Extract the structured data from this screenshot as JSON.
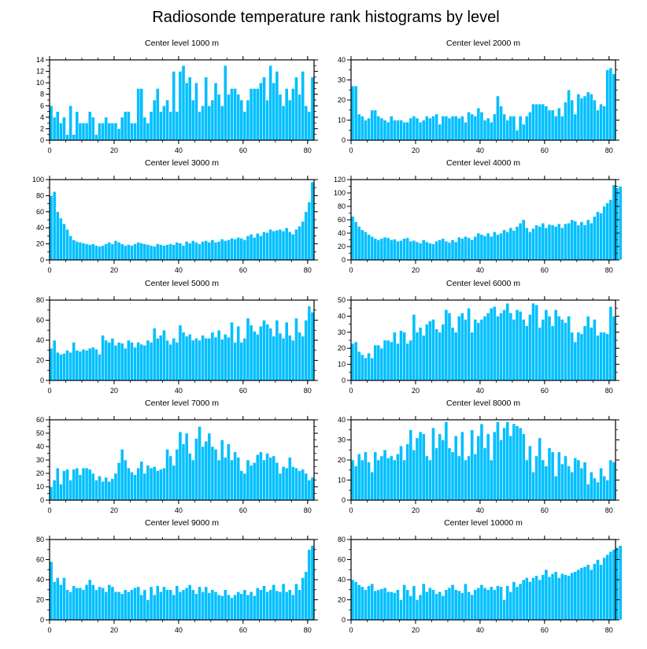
{
  "chart_data": {
    "type": "bar",
    "title": "Radiosonde temperature rank histograms by level",
    "bar_color": "#00bfff",
    "xlim": [
      0,
      82
    ],
    "xticks": [
      0,
      20,
      40,
      60,
      80
    ],
    "panels": [
      {
        "title": "Center level 1000 m",
        "ylim": [
          0,
          14
        ],
        "yticks": [
          0,
          2,
          4,
          6,
          8,
          10,
          12,
          14
        ],
        "values": [
          6,
          4,
          5,
          3,
          4,
          1,
          6,
          1,
          5,
          3,
          3,
          3,
          5,
          4,
          1,
          3,
          3,
          4,
          3,
          3,
          3,
          2,
          4,
          5,
          5,
          3,
          3,
          9,
          9,
          4,
          3,
          5,
          7,
          9,
          5,
          6,
          7,
          5,
          12,
          5,
          12,
          13,
          10,
          11,
          7,
          10,
          5,
          6,
          11,
          6,
          7,
          10,
          8,
          6,
          13,
          8,
          9,
          9,
          8,
          7,
          5,
          7,
          9,
          9,
          9,
          10,
          11,
          7,
          13,
          10,
          12,
          8,
          6,
          9,
          7,
          9,
          11,
          8,
          12,
          6,
          5,
          11
        ]
      },
      {
        "title": "Center level 2000 m",
        "ylim": [
          0,
          40
        ],
        "yticks": [
          0,
          10,
          20,
          30,
          40
        ],
        "values": [
          27,
          27,
          13,
          12,
          10,
          11,
          15,
          15,
          12,
          11,
          10,
          9,
          12,
          10,
          10,
          10,
          9,
          9,
          11,
          12,
          11,
          9,
          10,
          12,
          11,
          12,
          13,
          8,
          12,
          12,
          11,
          12,
          12,
          11,
          12,
          9,
          14,
          13,
          12,
          16,
          14,
          10,
          11,
          9,
          13,
          22,
          17,
          13,
          10,
          12,
          12,
          5,
          12,
          8,
          12,
          14,
          18,
          18,
          18,
          18,
          17,
          15,
          15,
          12,
          16,
          12,
          19,
          25,
          20,
          13,
          23,
          21,
          22,
          24,
          23,
          20,
          15,
          18,
          17,
          35,
          36,
          33
        ]
      },
      {
        "title": "Center level 3000 m",
        "ylim": [
          0,
          100
        ],
        "yticks": [
          0,
          20,
          40,
          60,
          80,
          100
        ],
        "values": [
          80,
          85,
          60,
          52,
          45,
          38,
          30,
          25,
          23,
          22,
          21,
          20,
          19,
          20,
          18,
          17,
          18,
          20,
          22,
          20,
          24,
          22,
          20,
          18,
          19,
          18,
          20,
          22,
          21,
          20,
          19,
          18,
          17,
          20,
          19,
          18,
          19,
          20,
          19,
          22,
          21,
          18,
          23,
          21,
          24,
          22,
          20,
          23,
          24,
          22,
          25,
          22,
          23,
          26,
          24,
          25,
          27,
          26,
          28,
          27,
          25,
          30,
          32,
          28,
          33,
          30,
          35,
          34,
          38,
          36,
          37,
          38,
          36,
          40,
          35,
          32,
          38,
          42,
          48,
          60,
          72,
          97
        ]
      },
      {
        "title": "Center level 4000 m",
        "ylim": [
          0,
          120
        ],
        "yticks": [
          0,
          20,
          40,
          60,
          80,
          100,
          120
        ],
        "values": [
          65,
          57,
          50,
          45,
          42,
          38,
          35,
          32,
          30,
          32,
          34,
          33,
          30,
          31,
          28,
          29,
          32,
          33,
          28,
          29,
          27,
          25,
          30,
          27,
          25,
          24,
          28,
          30,
          32,
          28,
          26,
          30,
          27,
          34,
          32,
          35,
          33,
          30,
          35,
          40,
          38,
          36,
          40,
          35,
          42,
          38,
          40,
          45,
          42,
          48,
          44,
          50,
          55,
          60,
          48,
          42,
          47,
          52,
          50,
          55,
          48,
          53,
          52,
          50,
          54,
          48,
          54,
          55,
          60,
          58,
          52,
          57,
          52,
          60,
          55,
          65,
          72,
          70,
          80,
          85,
          90,
          112,
          108,
          110
        ]
      },
      {
        "title": "Center level 5000 m",
        "ylim": [
          0,
          80
        ],
        "yticks": [
          0,
          20,
          40,
          60,
          80
        ],
        "values": [
          32,
          40,
          28,
          26,
          27,
          30,
          28,
          38,
          30,
          29,
          31,
          30,
          32,
          33,
          31,
          26,
          45,
          40,
          38,
          42,
          35,
          38,
          37,
          32,
          40,
          38,
          33,
          38,
          36,
          35,
          40,
          38,
          52,
          42,
          45,
          50,
          40,
          36,
          42,
          38,
          55,
          48,
          44,
          46,
          40,
          42,
          40,
          45,
          42,
          42,
          48,
          43,
          50,
          41,
          46,
          43,
          58,
          38,
          54,
          38,
          42,
          62,
          55,
          49,
          46,
          54,
          60,
          56,
          52,
          44,
          60,
          47,
          42,
          58,
          45,
          40,
          62,
          48,
          44,
          60,
          74,
          68
        ]
      },
      {
        "title": "Center level 6000 m",
        "ylim": [
          0,
          50
        ],
        "yticks": [
          0,
          10,
          20,
          30,
          40,
          50
        ],
        "values": [
          23,
          24,
          18,
          16,
          14,
          17,
          14,
          22,
          22,
          20,
          25,
          25,
          24,
          30,
          23,
          31,
          30,
          23,
          25,
          41,
          30,
          33,
          28,
          35,
          37,
          38,
          32,
          30,
          35,
          44,
          42,
          33,
          30,
          40,
          42,
          38,
          45,
          30,
          38,
          36,
          38,
          40,
          42,
          45,
          46,
          40,
          42,
          44,
          48,
          42,
          38,
          44,
          43,
          38,
          34,
          41,
          48,
          47,
          33,
          38,
          44,
          40,
          34,
          44,
          40,
          38,
          36,
          40,
          30,
          24,
          30,
          29,
          34,
          40,
          33,
          38,
          28,
          30,
          30,
          29,
          46,
          40
        ]
      },
      {
        "title": "Center level 7000 m",
        "ylim": [
          0,
          60
        ],
        "yticks": [
          0,
          10,
          20,
          30,
          40,
          50,
          60
        ],
        "values": [
          10,
          15,
          24,
          12,
          22,
          23,
          15,
          23,
          24,
          19,
          24,
          24,
          23,
          20,
          15,
          18,
          14,
          17,
          14,
          16,
          20,
          28,
          38,
          30,
          24,
          21,
          19,
          24,
          29,
          20,
          26,
          24,
          25,
          22,
          23,
          24,
          38,
          33,
          26,
          38,
          51,
          42,
          50,
          35,
          30,
          46,
          55,
          40,
          44,
          50,
          40,
          38,
          30,
          45,
          32,
          42,
          30,
          36,
          32,
          22,
          20,
          30,
          26,
          28,
          34,
          36,
          30,
          35,
          32,
          33,
          28,
          20,
          25,
          24,
          32,
          25,
          24,
          22,
          23,
          20,
          15,
          17
        ]
      },
      {
        "title": "Center level 8000 m",
        "ylim": [
          0,
          40
        ],
        "yticks": [
          0,
          10,
          20,
          30,
          40
        ],
        "values": [
          20,
          17,
          23,
          20,
          24,
          19,
          14,
          24,
          20,
          22,
          25,
          21,
          22,
          20,
          23,
          27,
          20,
          28,
          35,
          25,
          31,
          34,
          33,
          22,
          20,
          36,
          26,
          33,
          30,
          39,
          26,
          24,
          32,
          22,
          34,
          20,
          22,
          35,
          23,
          32,
          38,
          26,
          33,
          20,
          34,
          39,
          30,
          36,
          39,
          32,
          38,
          37,
          36,
          33,
          20,
          27,
          14,
          22,
          31,
          20,
          17,
          26,
          24,
          12,
          24,
          18,
          22,
          17,
          14,
          21,
          20,
          16,
          19,
          8,
          14,
          11,
          9,
          16,
          12,
          10,
          20,
          19
        ]
      },
      {
        "title": "Center level 9000 m",
        "ylim": [
          0,
          80
        ],
        "yticks": [
          0,
          20,
          40,
          60,
          80
        ],
        "values": [
          58,
          38,
          42,
          35,
          42,
          30,
          28,
          34,
          32,
          32,
          30,
          35,
          40,
          35,
          30,
          33,
          32,
          28,
          35,
          33,
          28,
          28,
          26,
          30,
          28,
          30,
          32,
          33,
          25,
          30,
          20,
          33,
          25,
          34,
          28,
          33,
          30,
          30,
          25,
          34,
          28,
          30,
          32,
          35,
          30,
          26,
          33,
          28,
          33,
          27,
          30,
          28,
          25,
          24,
          30,
          25,
          22,
          25,
          28,
          26,
          30,
          25,
          28,
          24,
          32,
          30,
          34,
          28,
          30,
          35,
          29,
          28,
          36,
          28,
          30,
          25,
          36,
          30,
          42,
          48,
          70,
          74
        ]
      },
      {
        "title": "Center level 10000 m",
        "ylim": [
          0,
          80
        ],
        "yticks": [
          0,
          20,
          40,
          60,
          80
        ],
        "values": [
          40,
          38,
          35,
          33,
          30,
          34,
          36,
          29,
          30,
          31,
          32,
          28,
          28,
          27,
          30,
          20,
          35,
          30,
          24,
          34,
          20,
          25,
          36,
          28,
          32,
          30,
          26,
          28,
          24,
          30,
          32,
          35,
          30,
          29,
          27,
          36,
          28,
          25,
          30,
          32,
          35,
          32,
          30,
          33,
          30,
          34,
          33,
          20,
          34,
          28,
          38,
          33,
          36,
          40,
          42,
          38,
          42,
          44,
          40,
          45,
          50,
          43,
          46,
          48,
          42,
          46,
          45,
          44,
          47,
          48,
          50,
          52,
          53,
          55,
          50,
          56,
          60,
          55,
          62,
          65,
          68,
          70,
          72,
          74
        ]
      }
    ]
  }
}
